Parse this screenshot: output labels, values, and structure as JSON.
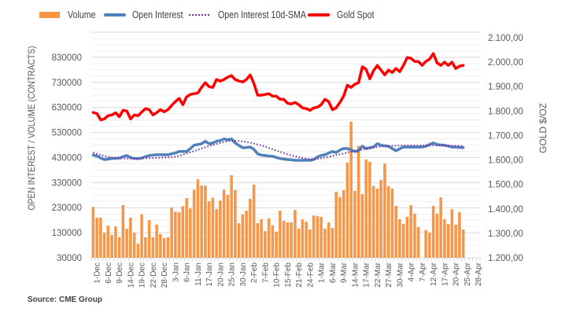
{
  "footer": {
    "source": "Source: CME Group"
  },
  "chart_data": {
    "type": "bar+line",
    "title": "",
    "legend_position": "top",
    "grid": true,
    "category_count": 104,
    "x_tick_first_index": 1,
    "x_tick_step": 3,
    "x_tick_labels": [
      "1-Dec",
      "6-Dec",
      "9-Dec",
      "14-Dec",
      "19-Dec",
      "22-Dec",
      "28-Dec",
      "3-Jan",
      "6-Jan",
      "11-Jan",
      "17-Jan",
      "20-Jan",
      "25-Jan",
      "30-Jan",
      "2-Feb",
      "7-Feb",
      "10-Feb",
      "15-Feb",
      "21-Feb",
      "24-Feb",
      "1-Mar",
      "6-Mar",
      "9-Mar",
      "14-Mar",
      "17-Mar",
      "22-Mar",
      "27-Mar",
      "30-Mar",
      "4-Apr",
      "7-Apr",
      "12-Apr",
      "17-Apr",
      "20-Apr",
      "25-Apr",
      "28-Apr"
    ],
    "y_left": {
      "label": "OPEN INTEREST / VOLUME (CONTRACTS)",
      "range": [
        30000,
        930000
      ],
      "major_step": 100000,
      "minor_step": 25000,
      "ticks": [
        30000,
        130000,
        230000,
        330000,
        430000,
        530000,
        630000,
        730000,
        830000
      ],
      "tick_labels": [
        "30000",
        "130000",
        "230000",
        "330000",
        "430000",
        "530000",
        "630000",
        "730000",
        "830000"
      ]
    },
    "y_right": {
      "label": "GOLD $/OZ",
      "range": [
        1200,
        2100
      ],
      "ticks": [
        1200,
        1300,
        1400,
        1500,
        1600,
        1700,
        1800,
        1900,
        2000,
        2100
      ],
      "tick_labels": [
        "1.200,00",
        "1.300,00",
        "1.400,00",
        "1.500,00",
        "1.600,00",
        "1.700,00",
        "1.800,00",
        "1.900,00",
        "2.000,00",
        "2.100,00"
      ]
    },
    "series": [
      {
        "name": "Volume",
        "type": "bar",
        "axis": "left",
        "color": "#f79646",
        "values": [
          233000,
          190000,
          190000,
          130000,
          158000,
          121000,
          155000,
          112000,
          240000,
          146000,
          190000,
          130000,
          86000,
          203000,
          112000,
          180000,
          112000,
          162000,
          124000,
          108000,
          112000,
          230000,
          214000,
          211000,
          236000,
          268000,
          227000,
          302000,
          343000,
          318000,
          318000,
          255000,
          270000,
          224000,
          258000,
          302000,
          281000,
          359000,
          300000,
          168000,
          203000,
          218000,
          265000,
          322000,
          168000,
          184000,
          137000,
          187000,
          159000,
          134000,
          218000,
          177000,
          171000,
          171000,
          221000,
          146000,
          183000,
          174000,
          143000,
          199000,
          196000,
          193000,
          146000,
          171000,
          149000,
          293000,
          272000,
          300000,
          410000,
          573000,
          297000,
          476000,
          284000,
          422000,
          413000,
          316000,
          306000,
          341000,
          406000,
          316000,
          306000,
          237000,
          184000,
          165000,
          193000,
          240000,
          206000,
          152000,
          null,
          140000,
          130000,
          237000,
          206000,
          271000,
          184000,
          165000,
          224000,
          162000,
          212000,
          143000
        ]
      },
      {
        "name": "Open Interest",
        "type": "line",
        "axis": "left",
        "color": "#4f81bd",
        "values": [
          440000,
          436000,
          428000,
          422000,
          424000,
          426000,
          427000,
          428000,
          434000,
          438000,
          430000,
          426000,
          426000,
          428000,
          434000,
          438000,
          440000,
          441000,
          441000,
          441000,
          441000,
          445000,
          448000,
          454000,
          454000,
          454000,
          466000,
          479000,
          482000,
          485000,
          495000,
          485000,
          488000,
          495000,
          498000,
          504000,
          501000,
          504000,
          488000,
          478000,
          469000,
          470000,
          472000,
          463000,
          445000,
          440000,
          438000,
          436000,
          435000,
          430000,
          426000,
          424000,
          422000,
          421000,
          419000,
          419000,
          419000,
          419000,
          419000,
          422000,
          432000,
          438000,
          441000,
          448000,
          454000,
          450000,
          460000,
          466000,
          466000,
          460000,
          454000,
          457000,
          475000,
          466000,
          469000,
          472000,
          485000,
          479000,
          477000,
          475000,
          466000,
          457000,
          465000,
          472000,
          472000,
          472000,
          472000,
          472000,
          472000,
          475000,
          482000,
          488000,
          482000,
          480000,
          479000,
          476000,
          472000,
          472000,
          470000,
          470000
        ]
      },
      {
        "name": "Open Interest 10d-SMA",
        "type": "line",
        "style": "dotted",
        "axis": "left",
        "color": "#7030a0",
        "values": [
          450000,
          445000,
          440000,
          436000,
          433000,
          430000,
          428000,
          427000,
          426000,
          426000,
          426000,
          426000,
          426000,
          427000,
          427000,
          428000,
          428000,
          429000,
          429000,
          430000,
          431000,
          432000,
          434000,
          437000,
          441000,
          446000,
          451000,
          456000,
          461000,
          466000,
          471000,
          476000,
          480000,
          484000,
          488000,
          492000,
          495000,
          497000,
          497000,
          496000,
          494000,
          492000,
          489000,
          486000,
          482000,
          478000,
          474000,
          468000,
          463000,
          458000,
          453000,
          448000,
          443000,
          439000,
          435000,
          431000,
          428000,
          425000,
          423000,
          422000,
          425000,
          427000,
          430000,
          433000,
          436000,
          440000,
          443000,
          446000,
          450000,
          453000,
          456000,
          459000,
          462000,
          465000,
          468000,
          470000,
          472000,
          474000,
          475000,
          476000,
          477000,
          477000,
          478000,
          478000,
          478000,
          478000,
          478000,
          478000,
          478000,
          478000,
          478000,
          478000,
          478000,
          478000,
          478000,
          477000,
          477000,
          477000,
          476000,
          476000
        ]
      },
      {
        "name": "Gold Spot",
        "type": "line",
        "axis": "right",
        "color": "#ff0000",
        "values": [
          1794,
          1790,
          1764,
          1768,
          1781,
          1784,
          1793,
          1777,
          1803,
          1800,
          1768,
          1784,
          1781,
          1796,
          1810,
          1806,
          1784,
          1794,
          1806,
          1797,
          1806,
          1823,
          1839,
          1852,
          1826,
          1858,
          1868,
          1871,
          1874,
          1897,
          1916,
          1900,
          1897,
          1929,
          1923,
          1929,
          1939,
          1945,
          1929,
          1923,
          1919,
          1929,
          1948,
          1913,
          1865,
          1865,
          1868,
          1871,
          1861,
          1861,
          1848,
          1848,
          1832,
          1829,
          1835,
          1826,
          1813,
          1810,
          1803,
          1813,
          1816,
          1826,
          1848,
          1839,
          1806,
          1813,
          1835,
          1861,
          1906,
          1897,
          1910,
          1916,
          1981,
          1971,
          1932,
          1965,
          1987,
          1968,
          1948,
          1968,
          1958,
          1974,
          1961,
          1987,
          2019,
          2016,
          2003,
          2003,
          1987,
          2003,
          2013,
          2035,
          1997,
          1987,
          2000,
          1987,
          2000,
          1974,
          1984,
          1987
        ]
      }
    ]
  }
}
